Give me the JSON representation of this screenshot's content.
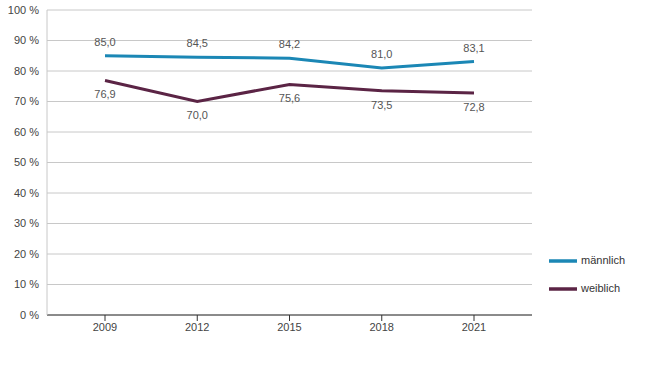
{
  "chart_data": {
    "type": "line",
    "categories": [
      "2009",
      "2012",
      "2015",
      "2018",
      "2021"
    ],
    "series": [
      {
        "name": "männlich",
        "color": "#1b87b5",
        "values": [
          85.0,
          84.5,
          84.2,
          81.0,
          83.1
        ],
        "value_labels": [
          "85,0",
          "84,5",
          "84,2",
          "81,0",
          "83,1"
        ]
      },
      {
        "name": "weiblich",
        "color": "#5b2445",
        "values": [
          76.9,
          70.0,
          75.6,
          73.5,
          72.8
        ],
        "value_labels": [
          "76,9",
          "70,0",
          "75,6",
          "73,5",
          "72,8"
        ]
      }
    ],
    "ylim": [
      0,
      100
    ],
    "yticks": [
      {
        "value": 0,
        "label": "0 %"
      },
      {
        "value": 10,
        "label": "10 %"
      },
      {
        "value": 20,
        "label": "20 %"
      },
      {
        "value": 30,
        "label": "30 %"
      },
      {
        "value": 40,
        "label": "40 %"
      },
      {
        "value": 50,
        "label": "50 %"
      },
      {
        "value": 60,
        "label": "60 %"
      },
      {
        "value": 70,
        "label": "70 %"
      },
      {
        "value": 80,
        "label": "80 %"
      },
      {
        "value": 90,
        "label": "90 %"
      },
      {
        "value": 100,
        "label": "100 %"
      }
    ],
    "grid": true,
    "legend": "lower right",
    "data_labels": true
  }
}
